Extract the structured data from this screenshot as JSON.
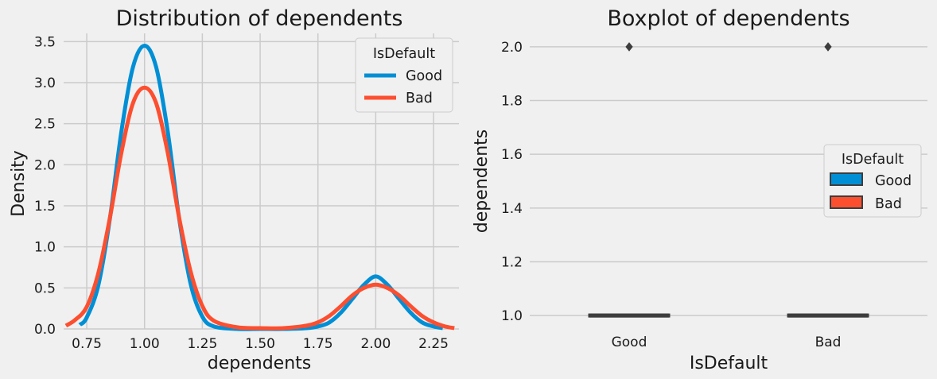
{
  "chart_data": [
    {
      "type": "line",
      "title": "Distribution of dependents",
      "xlabel": "dependents",
      "ylabel": "Density",
      "xlim": [
        0.65,
        2.36
      ],
      "ylim": [
        0,
        3.6
      ],
      "xticks": [
        "0.75",
        "1.00",
        "1.25",
        "1.50",
        "1.75",
        "2.00",
        "2.25"
      ],
      "yticks": [
        "0.0",
        "0.5",
        "1.0",
        "1.5",
        "2.0",
        "2.5",
        "3.0",
        "3.5"
      ],
      "grid": true,
      "legend": {
        "title": "IsDefault",
        "position": "top-right"
      },
      "series": [
        {
          "name": "Good",
          "color": "#008fd5",
          "x": [
            0.72,
            0.75,
            0.8,
            0.85,
            0.9,
            0.95,
            1.0,
            1.05,
            1.1,
            1.15,
            1.2,
            1.25,
            1.3,
            1.4,
            1.5,
            1.6,
            1.7,
            1.75,
            1.8,
            1.85,
            1.9,
            1.95,
            2.0,
            2.05,
            2.1,
            2.15,
            2.2,
            2.25,
            2.29
          ],
          "y": [
            0.05,
            0.14,
            0.53,
            1.34,
            2.41,
            3.19,
            3.45,
            3.19,
            2.41,
            1.34,
            0.54,
            0.15,
            0.03,
            0.0,
            0.0,
            0.0,
            0.01,
            0.03,
            0.08,
            0.2,
            0.37,
            0.54,
            0.64,
            0.54,
            0.37,
            0.2,
            0.08,
            0.03,
            0.01
          ]
        },
        {
          "name": "Bad",
          "color": "#fc4f30",
          "x": [
            0.66,
            0.7,
            0.75,
            0.8,
            0.85,
            0.9,
            0.95,
            1.0,
            1.05,
            1.1,
            1.15,
            1.2,
            1.25,
            1.3,
            1.4,
            1.5,
            1.6,
            1.7,
            1.75,
            1.8,
            1.85,
            1.9,
            1.95,
            2.0,
            2.05,
            2.1,
            2.15,
            2.2,
            2.25,
            2.3,
            2.34
          ],
          "y": [
            0.04,
            0.11,
            0.27,
            0.68,
            1.35,
            2.15,
            2.75,
            2.94,
            2.75,
            2.15,
            1.35,
            0.69,
            0.28,
            0.1,
            0.02,
            0.01,
            0.01,
            0.04,
            0.08,
            0.16,
            0.28,
            0.41,
            0.5,
            0.54,
            0.5,
            0.41,
            0.28,
            0.16,
            0.08,
            0.03,
            0.01
          ]
        }
      ]
    },
    {
      "type": "box",
      "title": "Boxplot of dependents",
      "xlabel": "IsDefault",
      "ylabel": "dependents",
      "categories": [
        "Good",
        "Bad"
      ],
      "ylim": [
        0.95,
        2.05
      ],
      "yticks": [
        "1.0",
        "1.2",
        "1.4",
        "1.6",
        "1.8",
        "2.0"
      ],
      "grid": true,
      "legend": {
        "title": "IsDefault",
        "position": "center-right"
      },
      "series": [
        {
          "name": "Good",
          "color": "#008fd5",
          "q1": 1.0,
          "median": 1.0,
          "q3": 1.0,
          "whisker_low": 1.0,
          "whisker_high": 1.0,
          "outliers": [
            2.0
          ]
        },
        {
          "name": "Bad",
          "color": "#fc4f30",
          "q1": 1.0,
          "median": 1.0,
          "q3": 1.0,
          "whisker_low": 1.0,
          "whisker_high": 1.0,
          "outliers": [
            2.0
          ]
        }
      ]
    }
  ]
}
